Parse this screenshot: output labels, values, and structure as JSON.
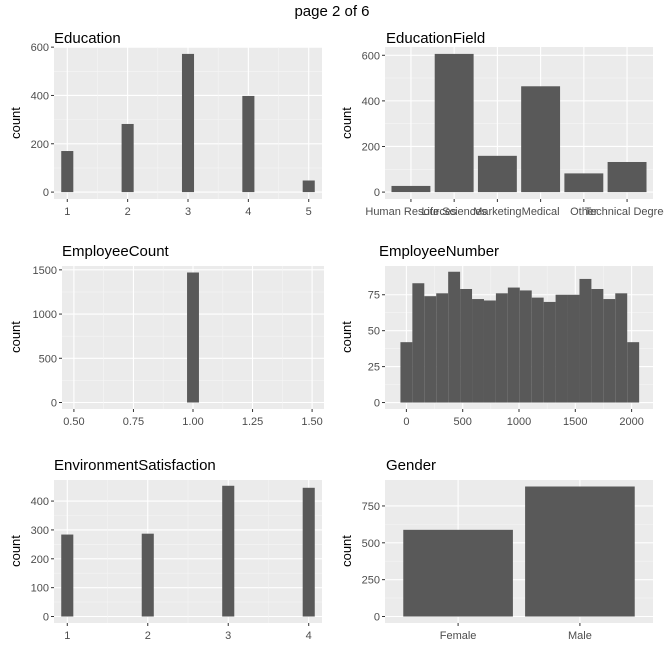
{
  "page": {
    "title": "page 2 of 6"
  },
  "chart_data": [
    {
      "type": "bar",
      "title": "Education",
      "xlabel": "",
      "ylabel": "count",
      "x_ticks": [
        1,
        2,
        3,
        4,
        5
      ],
      "x_tick_labels": [
        "1",
        "2",
        "3",
        "4",
        "5"
      ],
      "xlim": [
        0.78,
        5.22
      ],
      "y_ticks": [
        0,
        200,
        400,
        600
      ],
      "y_tick_labels": [
        "0",
        "200",
        "400",
        "600"
      ],
      "ylim": [
        -28.6,
        600.6
      ],
      "bar_width": 0.2,
      "bars": [
        {
          "x": 1,
          "value": 170
        },
        {
          "x": 2,
          "value": 282
        },
        {
          "x": 3,
          "value": 572
        },
        {
          "x": 4,
          "value": 398
        },
        {
          "x": 5,
          "value": 48
        }
      ]
    },
    {
      "type": "bar",
      "title": "EducationField",
      "xlabel": "",
      "ylabel": "count",
      "categories": [
        "Human Resources",
        "Life Sciences",
        "Marketing",
        "Medical",
        "Other",
        "Technical Degree"
      ],
      "values": [
        27,
        606,
        159,
        464,
        82,
        132
      ],
      "ylim": [
        -30.3,
        636.3
      ],
      "y_ticks": [
        0,
        200,
        400,
        600
      ],
      "y_tick_labels": [
        "0",
        "200",
        "400",
        "600"
      ]
    },
    {
      "type": "bar",
      "title": "EmployeeCount",
      "xlabel": "",
      "ylabel": "count",
      "x_ticks": [
        0.5,
        0.75,
        1.0,
        1.25,
        1.5
      ],
      "x_tick_labels": [
        "0.50",
        "0.75",
        "1.00",
        "1.25",
        "1.50"
      ],
      "xlim": [
        0.45,
        1.55
      ],
      "y_ticks": [
        0,
        500,
        1000,
        1500
      ],
      "y_tick_labels": [
        "0",
        "500",
        "1000",
        "1500"
      ],
      "ylim": [
        -73.5,
        1543.5
      ],
      "bar_width": 0.05,
      "bars": [
        {
          "x": 1.0,
          "value": 1470
        }
      ]
    },
    {
      "type": "bar",
      "title": "EmployeeNumber",
      "xlabel": "",
      "ylabel": "count",
      "x_ticks": [
        0,
        500,
        1000,
        1500,
        2000
      ],
      "x_tick_labels": [
        "0",
        "500",
        "1000",
        "1500",
        "2000"
      ],
      "xlim": [
        -190,
        2190
      ],
      "y_ticks": [
        0,
        25,
        50,
        75
      ],
      "y_tick_labels": [
        "0",
        "25",
        "50",
        "75"
      ],
      "ylim": [
        -4.5,
        95
      ],
      "bar_width": 106,
      "bars": [
        {
          "x": 0,
          "value": 42
        },
        {
          "x": 106,
          "value": 83
        },
        {
          "x": 212,
          "value": 74
        },
        {
          "x": 318,
          "value": 76
        },
        {
          "x": 424,
          "value": 91
        },
        {
          "x": 530,
          "value": 79
        },
        {
          "x": 636,
          "value": 72
        },
        {
          "x": 742,
          "value": 71
        },
        {
          "x": 848,
          "value": 76
        },
        {
          "x": 954,
          "value": 80
        },
        {
          "x": 1060,
          "value": 78
        },
        {
          "x": 1166,
          "value": 73
        },
        {
          "x": 1272,
          "value": 70
        },
        {
          "x": 1378,
          "value": 75
        },
        {
          "x": 1484,
          "value": 75
        },
        {
          "x": 1590,
          "value": 86
        },
        {
          "x": 1696,
          "value": 79
        },
        {
          "x": 1802,
          "value": 72
        },
        {
          "x": 1908,
          "value": 76
        },
        {
          "x": 2014,
          "value": 42
        }
      ]
    },
    {
      "type": "bar",
      "title": "EnvironmentSatisfaction",
      "xlabel": "",
      "ylabel": "count",
      "x_ticks": [
        1,
        2,
        3,
        4
      ],
      "x_tick_labels": [
        "1",
        "2",
        "3",
        "4"
      ],
      "xlim": [
        0.835,
        4.165
      ],
      "y_ticks": [
        0,
        100,
        200,
        300,
        400
      ],
      "y_tick_labels": [
        "0",
        "100",
        "200",
        "300",
        "400"
      ],
      "ylim": [
        -22.5,
        473
      ],
      "bar_width": 0.15,
      "bars": [
        {
          "x": 1,
          "value": 284
        },
        {
          "x": 2,
          "value": 287
        },
        {
          "x": 3,
          "value": 453
        },
        {
          "x": 4,
          "value": 446
        }
      ]
    },
    {
      "type": "bar",
      "title": "Gender",
      "xlabel": "",
      "ylabel": "count",
      "categories": [
        "Female",
        "Male"
      ],
      "values": [
        588,
        882
      ],
      "ylim": [
        -44.1,
        926.1
      ],
      "y_ticks": [
        0,
        250,
        500,
        750
      ],
      "y_tick_labels": [
        "0",
        "250",
        "500",
        "750"
      ]
    }
  ]
}
